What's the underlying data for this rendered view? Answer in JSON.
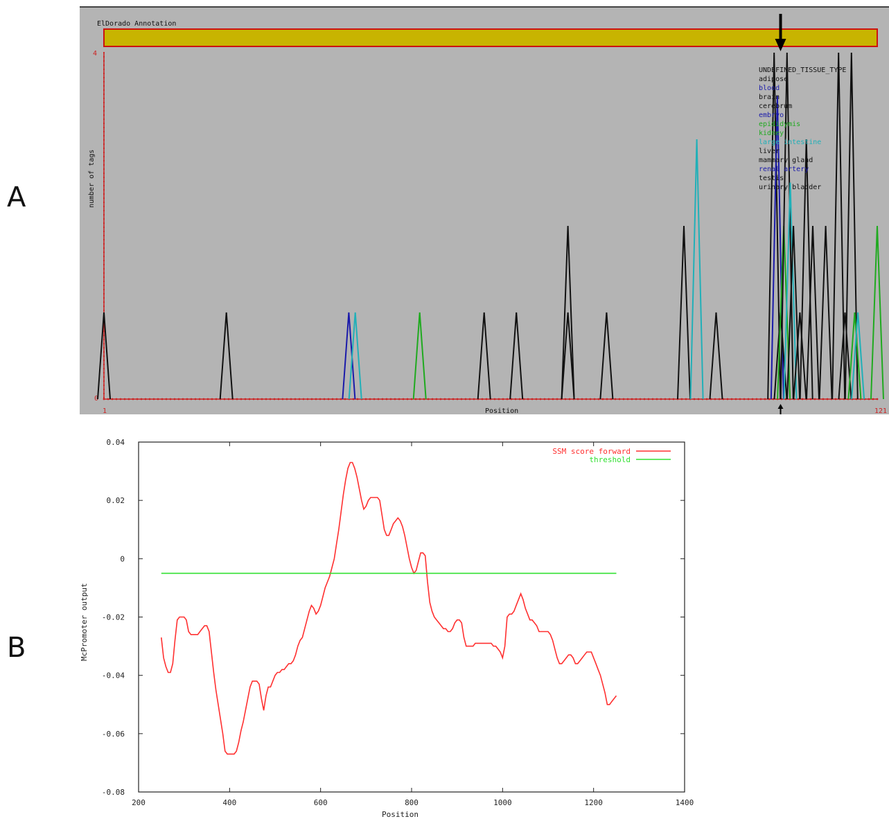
{
  "panels": {
    "a_label": "A",
    "b_label": "B"
  },
  "chart_data": [
    {
      "type": "line",
      "panel": "A",
      "title": "ElDorado Annotation",
      "xlabel": "Position",
      "ylabel": "number of tags",
      "xlim": [
        1,
        121
      ],
      "ylim": [
        0,
        4
      ],
      "x_tick_labels": [
        "1",
        "121"
      ],
      "y_tick_labels": [
        "0",
        "4"
      ],
      "annotation_bar_color": "#c8b400",
      "marker_position": 106,
      "tissue_legend": [
        {
          "name": "UNDEFINED_TISSUE_TYPE",
          "color": "#111111"
        },
        {
          "name": "adipose",
          "color": "#111111"
        },
        {
          "name": "blood",
          "color": "#1a1aaa"
        },
        {
          "name": "brain",
          "color": "#111111"
        },
        {
          "name": "cerebrum",
          "color": "#111111"
        },
        {
          "name": "embryo",
          "color": "#1a1aaa"
        },
        {
          "name": "epididymis",
          "color": "#1faa1f"
        },
        {
          "name": "kidney",
          "color": "#1faa1f"
        },
        {
          "name": "large intestine",
          "color": "#20b0b8"
        },
        {
          "name": "liver",
          "color": "#111111"
        },
        {
          "name": "mammary gland",
          "color": "#111111"
        },
        {
          "name": "renal artery",
          "color": "#1a1aaa"
        },
        {
          "name": "testis",
          "color": "#111111"
        },
        {
          "name": "urinary bladder",
          "color": "#111111"
        }
      ],
      "peaks": [
        {
          "x": 1,
          "y": 1,
          "color": "#111111"
        },
        {
          "x": 20,
          "y": 1,
          "color": "#111111"
        },
        {
          "x": 39,
          "y": 1,
          "color": "#1a1aaa"
        },
        {
          "x": 40,
          "y": 1,
          "color": "#20b0b8"
        },
        {
          "x": 50,
          "y": 1,
          "color": "#1faa1f"
        },
        {
          "x": 60,
          "y": 1,
          "color": "#111111"
        },
        {
          "x": 65,
          "y": 1,
          "color": "#111111"
        },
        {
          "x": 73,
          "y": 2,
          "color": "#111111"
        },
        {
          "x": 73,
          "y": 1,
          "color": "#111111"
        },
        {
          "x": 79,
          "y": 1,
          "color": "#111111"
        },
        {
          "x": 91,
          "y": 2,
          "color": "#111111"
        },
        {
          "x": 93,
          "y": 3,
          "color": "#20b0b8"
        },
        {
          "x": 96,
          "y": 1,
          "color": "#111111"
        },
        {
          "x": 105,
          "y": 4,
          "color": "#111111"
        },
        {
          "x": 105.5,
          "y": 3.5,
          "color": "#1a1aaa"
        },
        {
          "x": 106,
          "y": 1,
          "color": "#111111"
        },
        {
          "x": 106.5,
          "y": 2,
          "color": "#1faa1f"
        },
        {
          "x": 107,
          "y": 4,
          "color": "#111111"
        },
        {
          "x": 107.5,
          "y": 2.5,
          "color": "#20b0b8"
        },
        {
          "x": 108,
          "y": 2,
          "color": "#111111"
        },
        {
          "x": 109,
          "y": 1,
          "color": "#111111"
        },
        {
          "x": 110,
          "y": 3,
          "color": "#111111"
        },
        {
          "x": 111,
          "y": 2,
          "color": "#111111"
        },
        {
          "x": 113,
          "y": 2,
          "color": "#111111"
        },
        {
          "x": 115,
          "y": 4,
          "color": "#111111"
        },
        {
          "x": 116,
          "y": 1,
          "color": "#111111"
        },
        {
          "x": 117,
          "y": 4,
          "color": "#111111"
        },
        {
          "x": 117.5,
          "y": 1,
          "color": "#1faa1f"
        },
        {
          "x": 118,
          "y": 1,
          "color": "#20b0b8"
        },
        {
          "x": 121,
          "y": 2,
          "color": "#1faa1f"
        }
      ]
    },
    {
      "type": "line",
      "panel": "B",
      "title": "",
      "xlabel": "Position",
      "ylabel": "McPromoter output",
      "xlim": [
        200,
        1400
      ],
      "ylim": [
        -0.08,
        0.04
      ],
      "x_ticks": [
        200,
        400,
        600,
        800,
        1000,
        1200,
        1400
      ],
      "x_tick_labels": [
        "200",
        "400",
        "600",
        "800",
        "1000",
        "1200",
        "1400"
      ],
      "y_ticks": [
        -0.08,
        -0.06,
        -0.04,
        -0.02,
        0,
        0.02,
        0.04
      ],
      "y_tick_labels": [
        "-0.08",
        "-0.06",
        "-0.04",
        "-0.02",
        "0",
        "0.02",
        "0.04"
      ],
      "grid": false,
      "legend_position": "top-right",
      "series": [
        {
          "name": "SSM score forward",
          "color": "#ff3030",
          "x": [
            250,
            255,
            260,
            265,
            270,
            275,
            280,
            285,
            290,
            295,
            300,
            305,
            310,
            315,
            320,
            325,
            330,
            335,
            340,
            345,
            350,
            355,
            360,
            365,
            370,
            375,
            380,
            385,
            390,
            395,
            400,
            405,
            410,
            415,
            420,
            425,
            430,
            435,
            440,
            445,
            450,
            455,
            460,
            465,
            470,
            475,
            480,
            485,
            490,
            495,
            500,
            505,
            510,
            515,
            520,
            525,
            530,
            535,
            540,
            545,
            550,
            555,
            560,
            565,
            570,
            575,
            580,
            585,
            590,
            595,
            600,
            605,
            610,
            615,
            620,
            625,
            630,
            635,
            640,
            645,
            650,
            655,
            660,
            665,
            670,
            675,
            680,
            685,
            690,
            695,
            700,
            705,
            710,
            715,
            720,
            725,
            730,
            735,
            740,
            745,
            750,
            755,
            760,
            765,
            770,
            775,
            780,
            785,
            790,
            795,
            800,
            805,
            810,
            815,
            820,
            825,
            830,
            835,
            840,
            845,
            850,
            855,
            860,
            865,
            870,
            875,
            880,
            885,
            890,
            895,
            900,
            905,
            910,
            915,
            920,
            925,
            930,
            935,
            940,
            945,
            950,
            955,
            960,
            965,
            970,
            975,
            980,
            985,
            990,
            995,
            1000,
            1005,
            1010,
            1015,
            1020,
            1025,
            1030,
            1035,
            1040,
            1045,
            1050,
            1055,
            1060,
            1065,
            1070,
            1075,
            1080,
            1085,
            1090,
            1095,
            1100,
            1105,
            1110,
            1115,
            1120,
            1125,
            1130,
            1135,
            1140,
            1145,
            1150,
            1155,
            1160,
            1165,
            1170,
            1175,
            1180,
            1185,
            1190,
            1195,
            1200,
            1205,
            1210,
            1215,
            1220,
            1225,
            1230,
            1235,
            1240,
            1245,
            1250
          ],
          "y": [
            -0.027,
            -0.034,
            -0.037,
            -0.039,
            -0.039,
            -0.036,
            -0.028,
            -0.021,
            -0.02,
            -0.02,
            -0.02,
            -0.021,
            -0.025,
            -0.026,
            -0.026,
            -0.026,
            -0.026,
            -0.025,
            -0.024,
            -0.023,
            -0.023,
            -0.025,
            -0.032,
            -0.039,
            -0.045,
            -0.05,
            -0.055,
            -0.06,
            -0.066,
            -0.067,
            -0.067,
            -0.067,
            -0.067,
            -0.066,
            -0.063,
            -0.059,
            -0.056,
            -0.052,
            -0.048,
            -0.044,
            -0.042,
            -0.042,
            -0.042,
            -0.043,
            -0.048,
            -0.052,
            -0.047,
            -0.044,
            -0.044,
            -0.042,
            -0.04,
            -0.039,
            -0.039,
            -0.038,
            -0.038,
            -0.037,
            -0.036,
            -0.036,
            -0.035,
            -0.033,
            -0.03,
            -0.028,
            -0.027,
            -0.024,
            -0.021,
            -0.018,
            -0.016,
            -0.017,
            -0.019,
            -0.018,
            -0.016,
            -0.013,
            -0.01,
            -0.008,
            -0.006,
            -0.003,
            0.0,
            0.005,
            0.01,
            0.016,
            0.022,
            0.027,
            0.031,
            0.033,
            0.033,
            0.031,
            0.028,
            0.024,
            0.02,
            0.017,
            0.018,
            0.02,
            0.021,
            0.021,
            0.021,
            0.021,
            0.02,
            0.015,
            0.01,
            0.008,
            0.008,
            0.01,
            0.012,
            0.013,
            0.014,
            0.013,
            0.011,
            0.008,
            0.004,
            0.0,
            -0.003,
            -0.005,
            -0.004,
            -0.001,
            0.002,
            0.002,
            0.001,
            -0.008,
            -0.015,
            -0.018,
            -0.02,
            -0.021,
            -0.022,
            -0.023,
            -0.024,
            -0.024,
            -0.025,
            -0.025,
            -0.024,
            -0.022,
            -0.021,
            -0.021,
            -0.022,
            -0.027,
            -0.03,
            -0.03,
            -0.03,
            -0.03,
            -0.029,
            -0.029,
            -0.029,
            -0.029,
            -0.029,
            -0.029,
            -0.029,
            -0.029,
            -0.03,
            -0.03,
            -0.031,
            -0.032,
            -0.034,
            -0.03,
            -0.02,
            -0.019,
            -0.019,
            -0.018,
            -0.016,
            -0.014,
            -0.012,
            -0.014,
            -0.017,
            -0.019,
            -0.021,
            -0.021,
            -0.022,
            -0.023,
            -0.025,
            -0.025,
            -0.025,
            -0.025,
            -0.025,
            -0.026,
            -0.028,
            -0.031,
            -0.034,
            -0.036,
            -0.036,
            -0.035,
            -0.034,
            -0.033,
            -0.033,
            -0.034,
            -0.036,
            -0.036,
            -0.035,
            -0.034,
            -0.033,
            -0.032,
            -0.032,
            -0.032,
            -0.034,
            -0.036,
            -0.038,
            -0.04,
            -0.043,
            -0.046,
            -0.05,
            -0.05,
            -0.049,
            -0.048,
            -0.047
          ]
        },
        {
          "name": "threshold",
          "color": "#30e030",
          "x": [
            250,
            1250
          ],
          "y": [
            -0.005,
            -0.005
          ]
        }
      ]
    }
  ]
}
